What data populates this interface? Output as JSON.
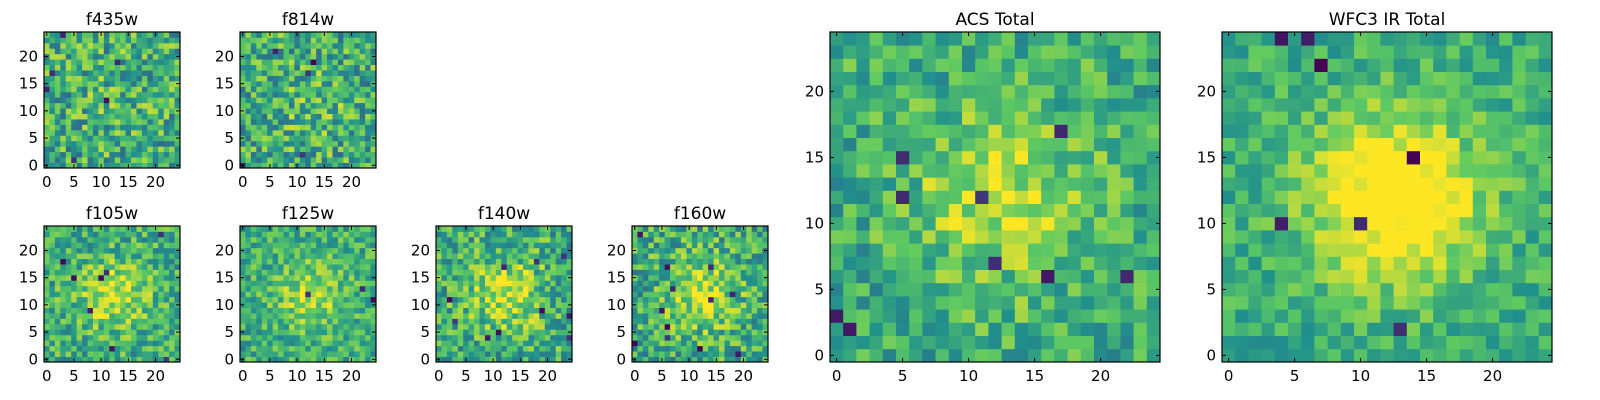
{
  "figure": {
    "colormap": [
      "#440154",
      "#3b528b",
      "#21918c",
      "#5ec962",
      "#fde725"
    ]
  },
  "chart_data": [
    {
      "type": "heatmap",
      "title": "f435w",
      "nx": 25,
      "ny": 25,
      "xlim": [
        0,
        24
      ],
      "ylim": [
        0,
        24
      ],
      "xticks": [
        0,
        5,
        10,
        15,
        20
      ],
      "yticks": [
        0,
        5,
        10,
        15,
        20
      ],
      "seed": 11,
      "blob": 0.05,
      "noise": 0.55,
      "darkspots": 6
    },
    {
      "type": "heatmap",
      "title": "f814w",
      "nx": 25,
      "ny": 25,
      "xlim": [
        0,
        24
      ],
      "ylim": [
        0,
        24
      ],
      "xticks": [
        0,
        5,
        10,
        15,
        20
      ],
      "yticks": [
        0,
        5,
        10,
        15,
        20
      ],
      "seed": 23,
      "blob": 0.08,
      "noise": 0.55,
      "darkspots": 5
    },
    {
      "type": "heatmap",
      "title": "f105w",
      "nx": 25,
      "ny": 25,
      "xlim": [
        0,
        24
      ],
      "ylim": [
        0,
        24
      ],
      "xticks": [
        0,
        5,
        10,
        15,
        20
      ],
      "yticks": [
        0,
        5,
        10,
        15,
        20
      ],
      "seed": 37,
      "blob": 0.3,
      "noise": 0.45,
      "darkspots": 8
    },
    {
      "type": "heatmap",
      "title": "f125w",
      "nx": 25,
      "ny": 25,
      "xlim": [
        0,
        24
      ],
      "ylim": [
        0,
        24
      ],
      "xticks": [
        0,
        5,
        10,
        15,
        20
      ],
      "yticks": [
        0,
        5,
        10,
        15,
        20
      ],
      "seed": 41,
      "blob": 0.25,
      "noise": 0.4,
      "darkspots": 3
    },
    {
      "type": "heatmap",
      "title": "f140w",
      "nx": 25,
      "ny": 25,
      "xlim": [
        0,
        24
      ],
      "ylim": [
        0,
        24
      ],
      "xticks": [
        0,
        5,
        10,
        15,
        20
      ],
      "yticks": [
        0,
        5,
        10,
        15,
        20
      ],
      "seed": 53,
      "blob": 0.3,
      "noise": 0.5,
      "darkspots": 10
    },
    {
      "type": "heatmap",
      "title": "f160w",
      "nx": 25,
      "ny": 25,
      "xlim": [
        0,
        24
      ],
      "ylim": [
        0,
        24
      ],
      "xticks": [
        0,
        5,
        10,
        15,
        20
      ],
      "yticks": [
        0,
        5,
        10,
        15,
        20
      ],
      "seed": 67,
      "blob": 0.3,
      "noise": 0.5,
      "darkspots": 12
    },
    {
      "type": "heatmap",
      "title": "ACS Total",
      "nx": 25,
      "ny": 25,
      "xlim": [
        0,
        24
      ],
      "ylim": [
        0,
        24
      ],
      "xticks": [
        0,
        5,
        10,
        15,
        20
      ],
      "yticks": [
        0,
        5,
        10,
        15,
        20
      ],
      "seed": 79,
      "blob": 0.3,
      "noise": 0.4,
      "darkspots": 9
    },
    {
      "type": "heatmap",
      "title": "WFC3 IR Total",
      "nx": 25,
      "ny": 25,
      "xlim": [
        0,
        24
      ],
      "ylim": [
        0,
        24
      ],
      "xticks": [
        0,
        5,
        10,
        15,
        20
      ],
      "yticks": [
        0,
        5,
        10,
        15,
        20
      ],
      "seed": 97,
      "blob": 0.55,
      "noise": 0.3,
      "darkspots": 7
    }
  ]
}
